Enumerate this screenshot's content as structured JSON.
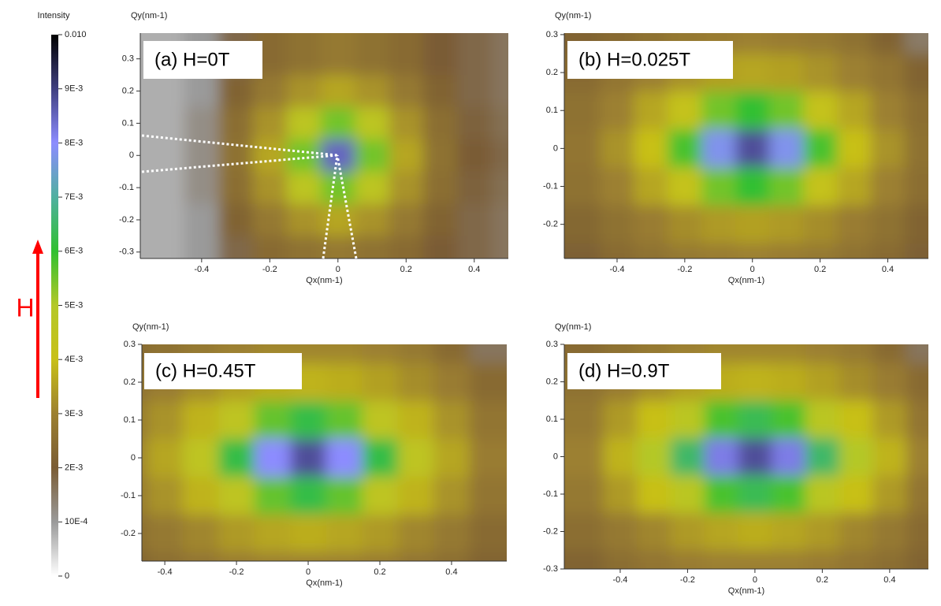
{
  "annotation": "H",
  "colorbar": {
    "label": "Intensity",
    "lim": [
      0,
      0.01
    ],
    "ticks": [
      {
        "value": 0.01,
        "label": "0.010"
      },
      {
        "value": 0.009,
        "label": "9E-3"
      },
      {
        "value": 0.008,
        "label": "8E-3"
      },
      {
        "value": 0.007,
        "label": "7E-3"
      },
      {
        "value": 0.006,
        "label": "6E-3"
      },
      {
        "value": 0.005,
        "label": "5E-3"
      },
      {
        "value": 0.004,
        "label": "4E-3"
      },
      {
        "value": 0.003,
        "label": "3E-3"
      },
      {
        "value": 0.002,
        "label": "2E-3"
      },
      {
        "value": 0.001,
        "label": "10E-4"
      },
      0
    ],
    "colors": [
      "#ffffff",
      "#9a9a9a",
      "#7a5c34",
      "#9c8030",
      "#c8c018",
      "#b4c828",
      "#30c030",
      "#50b0a0",
      "#8c8cff",
      "#404080",
      "#000000"
    ]
  },
  "chart_data": [
    {
      "type": "heatmap",
      "title": "(a) H=0T",
      "x_label": "Qx(nm-1)",
      "y_label": "Qy(nm-1)",
      "xlim": [
        -0.58,
        0.5
      ],
      "ylim": [
        -0.32,
        0.38
      ],
      "xticks": [
        -0.4,
        -0.2,
        0,
        0.2,
        0.4
      ],
      "yticks": [
        -0.3,
        -0.2,
        -0.1,
        0,
        0.1,
        0.2,
        0.3
      ],
      "x": [
        -0.5,
        -0.4,
        -0.3,
        -0.2,
        -0.1,
        0,
        0.1,
        0.2,
        0.3,
        0.4,
        0.5
      ],
      "y": [
        0.3,
        0.2,
        0.1,
        0,
        -0.1,
        -0.2,
        -0.3
      ],
      "values": [
        [
          0.0008,
          0.001,
          0.0018,
          0.0024,
          0.0026,
          0.0028,
          0.0026,
          0.0024,
          0.002,
          0.0018,
          0.0016
        ],
        [
          0.0008,
          0.001,
          0.0022,
          0.0028,
          0.0033,
          0.0036,
          0.0033,
          0.0028,
          0.0022,
          0.0018,
          0.0016
        ],
        [
          0.0008,
          0.0012,
          0.0025,
          0.0033,
          0.0046,
          0.0055,
          0.0046,
          0.0033,
          0.0025,
          0.0019,
          0.0017
        ],
        [
          0.0008,
          0.0012,
          0.0026,
          0.0036,
          0.0055,
          0.0085,
          0.0055,
          0.0036,
          0.0026,
          0.002,
          0.0018
        ],
        [
          0.0008,
          0.0012,
          0.0025,
          0.0033,
          0.0046,
          0.0055,
          0.0046,
          0.0033,
          0.0025,
          0.0019,
          0.0017
        ],
        [
          0.0008,
          0.001,
          0.0022,
          0.0028,
          0.0033,
          0.0036,
          0.0033,
          0.0028,
          0.0022,
          0.0018,
          0.0016
        ],
        [
          0.0008,
          0.001,
          0.0018,
          0.0024,
          0.0026,
          0.0028,
          0.0026,
          0.0024,
          0.002,
          0.0018,
          0.0016
        ]
      ]
    },
    {
      "type": "heatmap",
      "title": "(b) H=0.025T",
      "x_label": "Qx(nm-1)",
      "y_label": "Qy(nm-1)",
      "xlim": [
        -0.556,
        0.52
      ],
      "ylim": [
        -0.29,
        0.304
      ],
      "xticks": [
        -0.4,
        -0.2,
        0,
        0.2,
        0.4
      ],
      "yticks": [
        -0.2,
        -0.1,
        0,
        0.1,
        0.2,
        0.3
      ],
      "x": [
        -0.5,
        -0.4,
        -0.3,
        -0.2,
        -0.1,
        0,
        0.1,
        0.2,
        0.3,
        0.4,
        0.5
      ],
      "y": [
        0.3,
        0.2,
        0.1,
        0,
        -0.1,
        -0.2,
        -0.3
      ],
      "values": [
        [
          0.0022,
          0.0024,
          0.0026,
          0.0028,
          0.0029,
          0.003,
          0.0029,
          0.0028,
          0.0026,
          0.0022,
          0.0015
        ],
        [
          0.0024,
          0.0027,
          0.003,
          0.0033,
          0.0035,
          0.0036,
          0.0035,
          0.0033,
          0.003,
          0.0027,
          0.0022
        ],
        [
          0.0026,
          0.003,
          0.0036,
          0.0042,
          0.0055,
          0.006,
          0.0055,
          0.0042,
          0.0036,
          0.003,
          0.0025
        ],
        [
          0.0027,
          0.0033,
          0.004,
          0.0058,
          0.0078,
          0.0088,
          0.0078,
          0.0058,
          0.004,
          0.0033,
          0.0026
        ],
        [
          0.0026,
          0.003,
          0.0036,
          0.0042,
          0.0055,
          0.006,
          0.0055,
          0.0042,
          0.0036,
          0.003,
          0.0025
        ],
        [
          0.0023,
          0.0026,
          0.0029,
          0.0032,
          0.0034,
          0.0035,
          0.0034,
          0.0032,
          0.0029,
          0.0026,
          0.0022
        ],
        [
          0.0021,
          0.0024,
          0.0026,
          0.0028,
          0.0029,
          0.003,
          0.0029,
          0.0028,
          0.0026,
          0.0024,
          0.0021
        ]
      ]
    },
    {
      "type": "heatmap",
      "title": "(c) H=0.45T",
      "x_label": "Qx(nm-1)",
      "y_label": "Qy(nm-1)",
      "xlim": [
        -0.464,
        0.554
      ],
      "ylim": [
        -0.273,
        0.3
      ],
      "xticks": [
        -0.4,
        -0.2,
        0,
        0.2,
        0.4
      ],
      "yticks": [
        -0.2,
        -0.1,
        0,
        0.1,
        0.2,
        0.3
      ],
      "x": [
        -0.5,
        -0.4,
        -0.3,
        -0.2,
        -0.1,
        0,
        0.1,
        0.2,
        0.3,
        0.4,
        0.5
      ],
      "y": [
        0.3,
        0.2,
        0.1,
        0,
        -0.1,
        -0.2,
        -0.3
      ],
      "values": [
        [
          0.0024,
          0.0026,
          0.0028,
          0.003,
          0.0031,
          0.0031,
          0.0031,
          0.003,
          0.0028,
          0.0024,
          0.0016
        ],
        [
          0.0026,
          0.0029,
          0.0032,
          0.0035,
          0.0037,
          0.0038,
          0.0037,
          0.0035,
          0.0032,
          0.0029,
          0.0024
        ],
        [
          0.0028,
          0.0033,
          0.0038,
          0.0045,
          0.0056,
          0.0062,
          0.0056,
          0.0045,
          0.0038,
          0.0033,
          0.0027
        ],
        [
          0.003,
          0.0036,
          0.0045,
          0.0062,
          0.008,
          0.0088,
          0.008,
          0.0062,
          0.0045,
          0.0036,
          0.0029
        ],
        [
          0.0028,
          0.0033,
          0.0038,
          0.0045,
          0.0056,
          0.0062,
          0.0056,
          0.0045,
          0.0038,
          0.0033,
          0.0027
        ],
        [
          0.0025,
          0.0028,
          0.0031,
          0.0034,
          0.0036,
          0.0037,
          0.0036,
          0.0034,
          0.0031,
          0.0028,
          0.0024
        ],
        [
          0.0022,
          0.0025,
          0.0027,
          0.0029,
          0.003,
          0.003,
          0.003,
          0.0029,
          0.0027,
          0.0025,
          0.0022
        ]
      ]
    },
    {
      "type": "heatmap",
      "title": "(d) H=0.9T",
      "x_label": "Qx(nm-1)",
      "y_label": "Qy(nm-1)",
      "xlim": [
        -0.566,
        0.515
      ],
      "ylim": [
        -0.3,
        0.3
      ],
      "xticks": [
        -0.4,
        -0.2,
        0,
        0.2,
        0.4
      ],
      "yticks": [
        -0.3,
        -0.2,
        -0.1,
        0,
        0.1,
        0.2,
        0.3
      ],
      "x": [
        -0.5,
        -0.4,
        -0.3,
        -0.2,
        -0.1,
        0,
        0.1,
        0.2,
        0.3,
        0.4,
        0.5
      ],
      "y": [
        0.3,
        0.2,
        0.1,
        0,
        -0.1,
        -0.2,
        -0.3
      ],
      "values": [
        [
          0.0024,
          0.0026,
          0.0028,
          0.003,
          0.0031,
          0.0031,
          0.0031,
          0.003,
          0.0028,
          0.0024,
          0.0016
        ],
        [
          0.0026,
          0.0029,
          0.0032,
          0.0035,
          0.0037,
          0.0038,
          0.0037,
          0.0035,
          0.0032,
          0.0029,
          0.0024
        ],
        [
          0.0028,
          0.0034,
          0.004,
          0.0047,
          0.0058,
          0.0063,
          0.0058,
          0.0047,
          0.004,
          0.0034,
          0.0027
        ],
        [
          0.003,
          0.0038,
          0.005,
          0.0065,
          0.0082,
          0.0088,
          0.0082,
          0.0065,
          0.005,
          0.0038,
          0.003
        ],
        [
          0.0028,
          0.0034,
          0.004,
          0.0047,
          0.0058,
          0.0063,
          0.0058,
          0.0047,
          0.004,
          0.0034,
          0.0027
        ],
        [
          0.0025,
          0.0028,
          0.0031,
          0.0034,
          0.0036,
          0.0037,
          0.0036,
          0.0034,
          0.0031,
          0.0028,
          0.0024
        ],
        [
          0.0022,
          0.0025,
          0.0027,
          0.0029,
          0.003,
          0.003,
          0.003,
          0.0029,
          0.0027,
          0.0025,
          0.0022
        ]
      ]
    }
  ]
}
